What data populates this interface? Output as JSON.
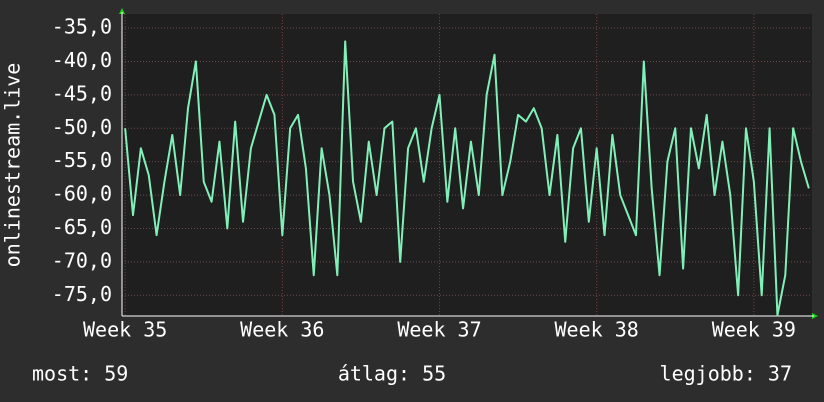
{
  "chart_data": {
    "type": "line",
    "ylabel": "onlinestream.live",
    "footer": [
      "most: 59",
      "átlag: 55",
      "legjobb: 37"
    ],
    "xlim": [
      34.98,
      39.37
    ],
    "ylim": [
      -78.1,
      -32.9
    ],
    "xticks": [
      {
        "value": 35,
        "label": "Week 35"
      },
      {
        "value": 36,
        "label": "Week 36"
      },
      {
        "value": 37,
        "label": "Week 37"
      },
      {
        "value": 38,
        "label": "Week 38"
      },
      {
        "value": 39,
        "label": "Week 39"
      }
    ],
    "yticks": [
      {
        "value": -35,
        "label": "-35,0"
      },
      {
        "value": -40,
        "label": "-40,0"
      },
      {
        "value": -45,
        "label": "-45,0"
      },
      {
        "value": -50,
        "label": "-50,0"
      },
      {
        "value": -55,
        "label": "-55,0"
      },
      {
        "value": -60,
        "label": "-60,0"
      },
      {
        "value": -65,
        "label": "-65,0"
      },
      {
        "value": -70,
        "label": "-70,0"
      },
      {
        "value": -75,
        "label": "-75,0"
      }
    ],
    "grid": true,
    "x": [
      35,
      35.05,
      35.1,
      35.15,
      35.2,
      35.25,
      35.3,
      35.35,
      35.4,
      35.45,
      35.5,
      35.55,
      35.6,
      35.65,
      35.7,
      35.75,
      35.8,
      35.85,
      35.9,
      35.95,
      36,
      36.05,
      36.1,
      36.15,
      36.2,
      36.25,
      36.3,
      36.35,
      36.4,
      36.45,
      36.5,
      36.55,
      36.6,
      36.65,
      36.7,
      36.75,
      36.8,
      36.85,
      36.9,
      36.95,
      37,
      37.05,
      37.1,
      37.15,
      37.2,
      37.25,
      37.3,
      37.35,
      37.4,
      37.45,
      37.5,
      37.55,
      37.6,
      37.65,
      37.7,
      37.75,
      37.8,
      37.85,
      37.9,
      37.95,
      38,
      38.05,
      38.1,
      38.15,
      38.2,
      38.25,
      38.3,
      38.35,
      38.4,
      38.45,
      38.5,
      38.55,
      38.6,
      38.65,
      38.7,
      38.75,
      38.8,
      38.85,
      38.9,
      38.95,
      39,
      39.05,
      39.1,
      39.15,
      39.2,
      39.25,
      39.3,
      39.35
    ],
    "series": [
      {
        "color": "#80f0b8",
        "values": [
          -50,
          -63,
          -53,
          -57,
          -66,
          -58,
          -51,
          -60,
          -47,
          -40,
          -58,
          -61,
          -52,
          -65,
          -49,
          -64,
          -53,
          -49,
          -45,
          -48,
          -66,
          -50,
          -48,
          -56,
          -72,
          -53,
          -60,
          -72,
          -37,
          -58,
          -64,
          -52,
          -60,
          -50,
          -49,
          -70,
          -53,
          -50,
          -58,
          -50,
          -45,
          -61,
          -50,
          -62,
          -52,
          -60,
          -45,
          -39,
          -60,
          -55,
          -48,
          -49,
          -47,
          -50,
          -60,
          -51,
          -67,
          -53,
          -50,
          -64,
          -53,
          -66,
          -51,
          -60,
          -63,
          -66,
          -40,
          -59,
          -72,
          -55,
          -50,
          -71,
          -50,
          -56,
          -48,
          -60,
          -52,
          -60,
          -75,
          -50,
          -58,
          -75,
          -50,
          -78,
          -72,
          -50,
          -55,
          -59
        ]
      }
    ]
  }
}
